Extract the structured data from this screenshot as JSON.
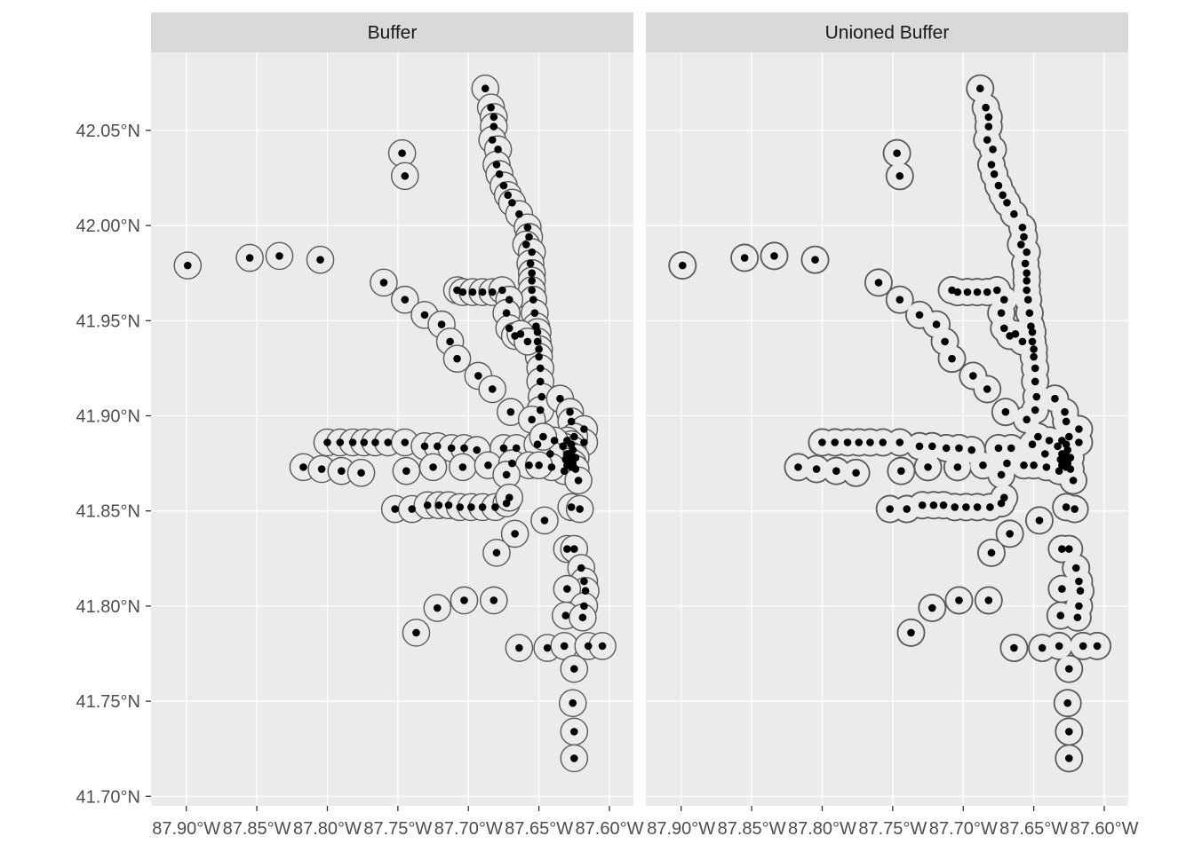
{
  "chart_data": {
    "type": "scatter",
    "description_free": true,
    "facets": [
      "Buffer",
      "Unioned Buffer"
    ],
    "x_ticks": [
      "87.90°W",
      "87.85°W",
      "87.80°W",
      "87.75°W",
      "87.70°W",
      "87.65°W",
      "87.60°W"
    ],
    "x_tick_values": [
      -87.9,
      -87.85,
      -87.8,
      -87.75,
      -87.7,
      -87.65,
      -87.6
    ],
    "y_ticks": [
      "41.70°N",
      "41.75°N",
      "41.80°N",
      "41.85°N",
      "41.90°N",
      "41.95°N",
      "42.00°N",
      "42.05°N"
    ],
    "y_tick_values": [
      41.7,
      41.75,
      41.8,
      41.85,
      41.9,
      41.95,
      42.0,
      42.05
    ],
    "xlim": [
      -87.925,
      -87.583
    ],
    "ylim": [
      41.695,
      42.091
    ],
    "buffer_radius_deg": 0.0095,
    "colors": {
      "panel_bg": "#ebebeb",
      "grid": "#ffffff",
      "strip_bg": "#d9d9d9",
      "buffer_fill": "#ebebeb",
      "buffer_stroke": "#595959",
      "point": "#000000"
    },
    "points": [
      [
        -87.688,
        42.072
      ],
      [
        -87.684,
        42.062
      ],
      [
        -87.682,
        42.057
      ],
      [
        -87.682,
        42.052
      ],
      [
        -87.683,
        42.045
      ],
      [
        -87.679,
        42.04
      ],
      [
        -87.68,
        42.032
      ],
      [
        -87.678,
        42.027
      ],
      [
        -87.675,
        42.021
      ],
      [
        -87.672,
        42.016
      ],
      [
        -87.669,
        42.012
      ],
      [
        -87.664,
        42.006
      ],
      [
        -87.658,
        41.999
      ],
      [
        -87.657,
        41.994
      ],
      [
        -87.659,
        41.99
      ],
      [
        -87.655,
        41.986
      ],
      [
        -87.656,
        41.98
      ],
      [
        -87.655,
        41.975
      ],
      [
        -87.655,
        41.971
      ],
      [
        -87.655,
        41.966
      ],
      [
        -87.654,
        41.961
      ],
      [
        -87.653,
        41.954
      ],
      [
        -87.652,
        41.947
      ],
      [
        -87.651,
        41.944
      ],
      [
        -87.651,
        41.939
      ],
      [
        -87.65,
        41.935
      ],
      [
        -87.65,
        41.931
      ],
      [
        -87.649,
        41.925
      ],
      [
        -87.649,
        41.918
      ],
      [
        -87.648,
        41.91
      ],
      [
        -87.649,
        41.903
      ],
      [
        -87.747,
        42.038
      ],
      [
        -87.745,
        42.026
      ],
      [
        -87.899,
        41.979
      ],
      [
        -87.855,
        41.983
      ],
      [
        -87.834,
        41.984
      ],
      [
        -87.805,
        41.982
      ],
      [
        -87.76,
        41.97
      ],
      [
        -87.745,
        41.961
      ],
      [
        -87.731,
        41.953
      ],
      [
        -87.719,
        41.948
      ],
      [
        -87.713,
        41.939
      ],
      [
        -87.708,
        41.93
      ],
      [
        -87.693,
        41.921
      ],
      [
        -87.683,
        41.914
      ],
      [
        -87.67,
        41.902
      ],
      [
        -87.655,
        41.898
      ],
      [
        -87.708,
        41.966
      ],
      [
        -87.704,
        41.965
      ],
      [
        -87.697,
        41.965
      ],
      [
        -87.69,
        41.965
      ],
      [
        -87.683,
        41.965
      ],
      [
        -87.676,
        41.966
      ],
      [
        -87.671,
        41.961
      ],
      [
        -87.673,
        41.954
      ],
      [
        -87.671,
        41.946
      ],
      [
        -87.667,
        41.942
      ],
      [
        -87.663,
        41.943
      ],
      [
        -87.658,
        41.939
      ],
      [
        -87.635,
        41.909
      ],
      [
        -87.628,
        41.902
      ],
      [
        -87.627,
        41.897
      ],
      [
        -87.618,
        41.893
      ],
      [
        -87.618,
        41.886
      ],
      [
        -87.625,
        41.889
      ],
      [
        -87.63,
        41.887
      ],
      [
        -87.627,
        41.885
      ],
      [
        -87.633,
        41.884
      ],
      [
        -87.626,
        41.882
      ],
      [
        -87.63,
        41.88
      ],
      [
        -87.627,
        41.879
      ],
      [
        -87.624,
        41.878
      ],
      [
        -87.631,
        41.877
      ],
      [
        -87.628,
        41.876
      ],
      [
        -87.626,
        41.875
      ],
      [
        -87.63,
        41.874
      ],
      [
        -87.627,
        41.873
      ],
      [
        -87.624,
        41.872
      ],
      [
        -87.632,
        41.871
      ],
      [
        -87.639,
        41.887
      ],
      [
        -87.642,
        41.88
      ],
      [
        -87.641,
        41.873
      ],
      [
        -87.8,
        41.886
      ],
      [
        -87.791,
        41.886
      ],
      [
        -87.782,
        41.886
      ],
      [
        -87.774,
        41.886
      ],
      [
        -87.766,
        41.886
      ],
      [
        -87.757,
        41.886
      ],
      [
        -87.745,
        41.886
      ],
      [
        -87.731,
        41.884
      ],
      [
        -87.722,
        41.884
      ],
      [
        -87.712,
        41.883
      ],
      [
        -87.703,
        41.883
      ],
      [
        -87.694,
        41.882
      ],
      [
        -87.675,
        41.883
      ],
      [
        -87.666,
        41.883
      ],
      [
        -87.651,
        41.885
      ],
      [
        -87.647,
        41.889
      ],
      [
        -87.817,
        41.873
      ],
      [
        -87.804,
        41.872
      ],
      [
        -87.79,
        41.871
      ],
      [
        -87.776,
        41.87
      ],
      [
        -87.744,
        41.871
      ],
      [
        -87.725,
        41.873
      ],
      [
        -87.704,
        41.873
      ],
      [
        -87.686,
        41.874
      ],
      [
        -87.669,
        41.875
      ],
      [
        -87.657,
        41.874
      ],
      [
        -87.65,
        41.874
      ],
      [
        -87.673,
        41.869
      ],
      [
        -87.752,
        41.851
      ],
      [
        -87.74,
        41.851
      ],
      [
        -87.729,
        41.853
      ],
      [
        -87.721,
        41.853
      ],
      [
        -87.714,
        41.853
      ],
      [
        -87.706,
        41.852
      ],
      [
        -87.698,
        41.852
      ],
      [
        -87.69,
        41.852
      ],
      [
        -87.681,
        41.852
      ],
      [
        -87.673,
        41.854
      ],
      [
        -87.671,
        41.857
      ],
      [
        -87.667,
        41.838
      ],
      [
        -87.646,
        41.845
      ],
      [
        -87.68,
        41.828
      ],
      [
        -87.627,
        41.852
      ],
      [
        -87.621,
        41.851
      ],
      [
        -87.622,
        41.866
      ],
      [
        -87.63,
        41.83
      ],
      [
        -87.625,
        41.83
      ],
      [
        -87.62,
        41.82
      ],
      [
        -87.618,
        41.813
      ],
      [
        -87.617,
        41.808
      ],
      [
        -87.63,
        41.809
      ],
      [
        -87.618,
        41.8
      ],
      [
        -87.631,
        41.795
      ],
      [
        -87.619,
        41.794
      ],
      [
        -87.682,
        41.803
      ],
      [
        -87.703,
        41.803
      ],
      [
        -87.722,
        41.799
      ],
      [
        -87.737,
        41.786
      ],
      [
        -87.664,
        41.778
      ],
      [
        -87.644,
        41.778
      ],
      [
        -87.632,
        41.779
      ],
      [
        -87.625,
        41.767
      ],
      [
        -87.615,
        41.779
      ],
      [
        -87.605,
        41.779
      ],
      [
        -87.626,
        41.749
      ],
      [
        -87.625,
        41.734
      ],
      [
        -87.625,
        41.72
      ]
    ]
  }
}
